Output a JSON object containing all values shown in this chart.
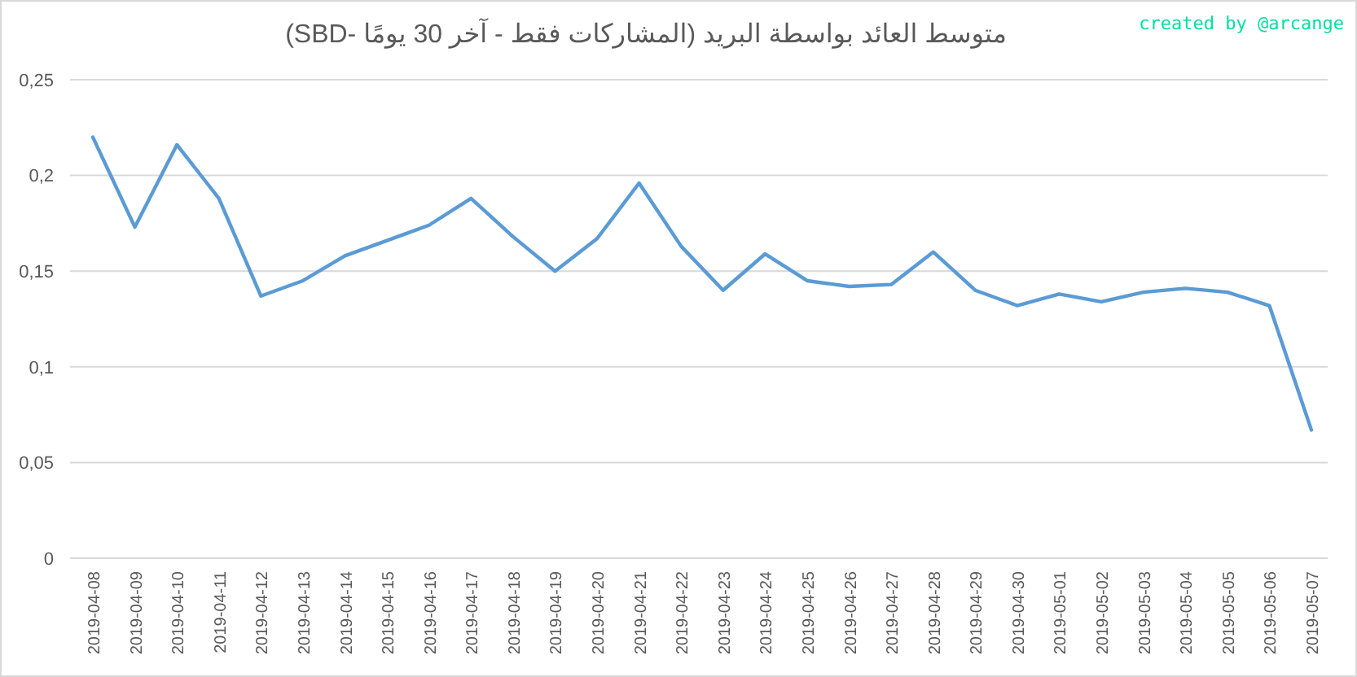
{
  "chart_data": {
    "type": "line",
    "title": "متوسط العائد بواسطة البريد (المشاركات فقط - آخر 30 يومًا -SBD)",
    "annotations": [
      "created by @arcange"
    ],
    "categories": [
      "2019-04-08",
      "2019-04-09",
      "2019-04-10",
      "2019-04-11",
      "2019-04-12",
      "2019-04-13",
      "2019-04-14",
      "2019-04-15",
      "2019-04-16",
      "2019-04-17",
      "2019-04-18",
      "2019-04-19",
      "2019-04-20",
      "2019-04-21",
      "2019-04-22",
      "2019-04-23",
      "2019-04-24",
      "2019-04-25",
      "2019-04-26",
      "2019-04-27",
      "2019-04-28",
      "2019-04-29",
      "2019-04-30",
      "2019-05-01",
      "2019-05-02",
      "2019-05-03",
      "2019-05-04",
      "2019-05-05",
      "2019-05-06",
      "2019-05-07"
    ],
    "series": [
      {
        "color": "#5b9bd5",
        "values": [
          0.22,
          0.173,
          0.216,
          0.188,
          0.137,
          0.145,
          0.158,
          0.166,
          0.174,
          0.188,
          0.168,
          0.15,
          0.167,
          0.196,
          0.163,
          0.14,
          0.159,
          0.145,
          0.142,
          0.143,
          0.16,
          0.14,
          0.132,
          0.138,
          0.134,
          0.139,
          0.141,
          0.139,
          0.132,
          0.067
        ]
      }
    ],
    "ylim": [
      0,
      0.25
    ],
    "yticks": [
      {
        "value": 0,
        "label": "0"
      },
      {
        "value": 0.05,
        "label": "0,05"
      },
      {
        "value": 0.1,
        "label": "0,1"
      },
      {
        "value": 0.15,
        "label": "0,15"
      },
      {
        "value": 0.2,
        "label": "0,2"
      },
      {
        "value": 0.25,
        "label": "0,25"
      }
    ],
    "grid": "y",
    "marker": "none",
    "line_style": "solid"
  }
}
